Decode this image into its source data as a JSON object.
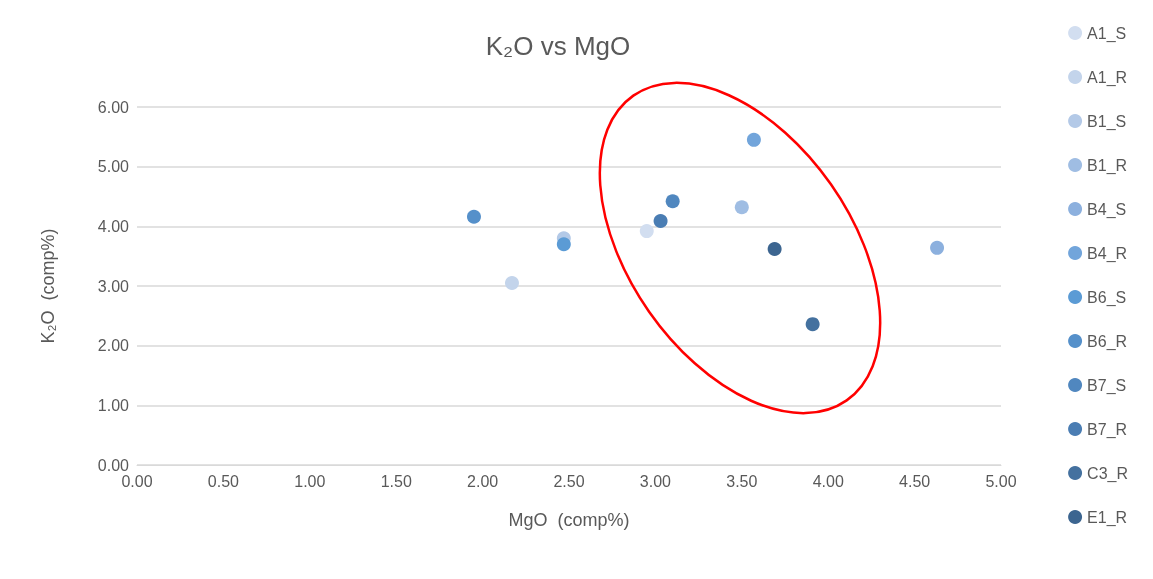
{
  "chart_data": {
    "type": "scatter",
    "title": "K₂O vs MgO",
    "xlabel": "MgO  (comp%)",
    "ylabel": "K₂O  (comp%)",
    "xlim": [
      0,
      5
    ],
    "xticks": [
      {
        "value": 0,
        "label": "0.00"
      },
      {
        "value": 0.5,
        "label": "0.50"
      },
      {
        "value": 1,
        "label": "1.00"
      },
      {
        "value": 1.5,
        "label": "1.50"
      },
      {
        "value": 2,
        "label": "2.00"
      },
      {
        "value": 2.5,
        "label": "2.50"
      },
      {
        "value": 3,
        "label": "3.00"
      },
      {
        "value": 3.5,
        "label": "3.50"
      },
      {
        "value": 4,
        "label": "4.00"
      },
      {
        "value": 4.5,
        "label": "4.50"
      },
      {
        "value": 5,
        "label": "5.00"
      }
    ],
    "ylim": [
      0,
      6
    ],
    "yticks": [
      {
        "value": 0,
        "label": "0.00"
      },
      {
        "value": 1,
        "label": "1.00"
      },
      {
        "value": 2,
        "label": "2.00"
      },
      {
        "value": 3,
        "label": "3.00"
      },
      {
        "value": 4,
        "label": "4.00"
      },
      {
        "value": 5,
        "label": "5.00"
      },
      {
        "value": 6,
        "label": "6.00"
      }
    ],
    "grid": "y",
    "legend": "right",
    "marker": "circle",
    "series": [
      {
        "name": "A1_S",
        "color": "#d2def0",
        "x": [
          2.95
        ],
        "values": [
          3.92
        ]
      },
      {
        "name": "A1_R",
        "color": "#c3d4eb",
        "x": [
          2.17
        ],
        "values": [
          3.05
        ]
      },
      {
        "name": "B1_S",
        "color": "#b3c9e7",
        "x": [
          2.47
        ],
        "values": [
          3.8
        ]
      },
      {
        "name": "B1_R",
        "color": "#9fbde3",
        "x": [
          3.5
        ],
        "values": [
          4.32
        ]
      },
      {
        "name": "B4_S",
        "color": "#8cb0de",
        "x": [
          4.63
        ],
        "values": [
          3.64
        ]
      },
      {
        "name": "B4_R",
        "color": "#72a5db",
        "x": [
          3.57
        ],
        "values": [
          5.45
        ]
      },
      {
        "name": "B6_S",
        "color": "#5b9bd5",
        "x": [
          2.47
        ],
        "values": [
          3.7
        ]
      },
      {
        "name": "B6_R",
        "color": "#5590ca",
        "x": [
          1.95
        ],
        "values": [
          4.16
        ]
      },
      {
        "name": "B7_S",
        "color": "#5087bf",
        "x": [
          3.1
        ],
        "values": [
          4.42
        ]
      },
      {
        "name": "B7_R",
        "color": "#4a7db3",
        "x": [
          3.03
        ],
        "values": [
          4.09
        ]
      },
      {
        "name": "C3_R",
        "color": "#44719f",
        "x": [
          3.91
        ],
        "values": [
          2.36
        ]
      },
      {
        "name": "E1_R",
        "color": "#3c6590",
        "x": [
          3.69
        ],
        "values": [
          3.62
        ]
      }
    ]
  }
}
